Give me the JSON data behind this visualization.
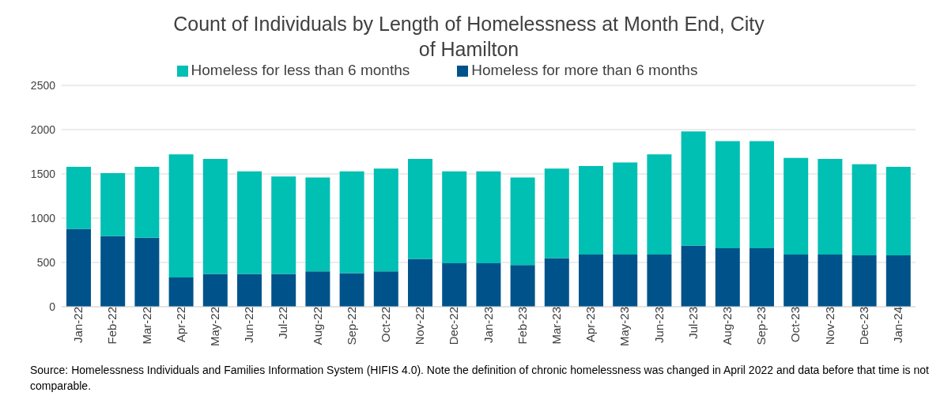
{
  "chart_data": {
    "type": "bar",
    "title": "Count of Individuals by Length of Homelessness  at Month End, City of Hamilton",
    "categories": [
      "Jan-22",
      "Feb-22",
      "Mar-22",
      "Apr-22",
      "May-22",
      "Jun-22",
      "Jul-22",
      "Aug-22",
      "Sep-22",
      "Oct-22",
      "Nov-22",
      "Dec-22",
      "Jan-23",
      "Feb-23",
      "Mar-23",
      "Apr-23",
      "May-23",
      "Jun-23",
      "Jul-23",
      "Aug-23",
      "Sep-23",
      "Oct-23",
      "Nov-23",
      "Dec-23",
      "Jan-24"
    ],
    "series": [
      {
        "name": "Homeless for more than 6 months",
        "color": "#00538a",
        "values": [
          880,
          800,
          780,
          330,
          370,
          370,
          370,
          400,
          380,
          400,
          540,
          490,
          490,
          470,
          550,
          590,
          590,
          590,
          690,
          660,
          660,
          590,
          590,
          580,
          580
        ]
      },
      {
        "name": "Homeless for less than 6 months",
        "color": "#00bfb3",
        "values": [
          700,
          710,
          800,
          1390,
          1300,
          1160,
          1100,
          1060,
          1150,
          1160,
          1130,
          1040,
          1040,
          990,
          1010,
          1000,
          1040,
          1130,
          1290,
          1210,
          1210,
          1090,
          1080,
          1030,
          1000
        ]
      }
    ],
    "stacked": true,
    "ylim": [
      0,
      2500
    ],
    "yticks": [
      0,
      500,
      1000,
      1500,
      2000,
      2500
    ],
    "grid": "y",
    "legend": "top",
    "annotations": [
      "Source: Homelessness Individuals and Families Information System (HIFIS 4.0). Note the definition of chronic homelessness was changed in April 2022 and data before that time is not comparable."
    ]
  }
}
